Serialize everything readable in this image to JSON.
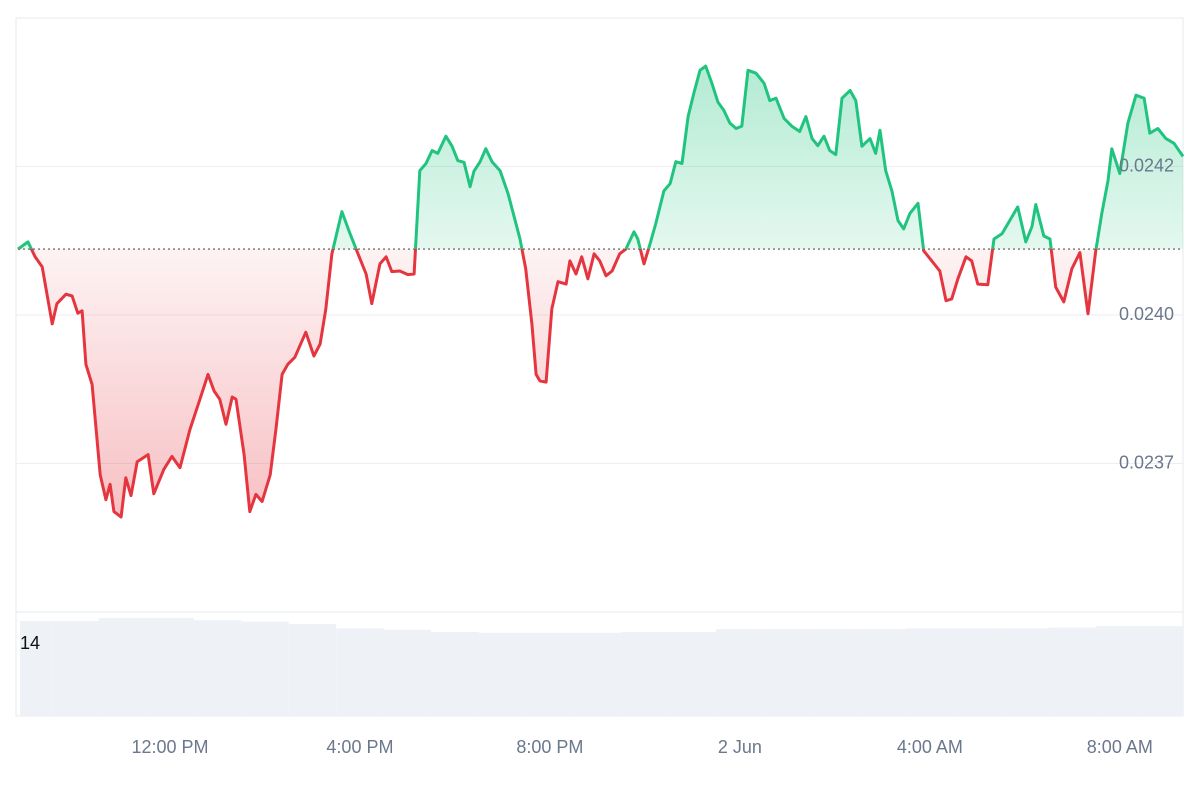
{
  "chart_data": {
    "type": "line",
    "up_color": "#20c47f",
    "down_color": "#e5353f",
    "baseline": 0.024111,
    "xlim": [
      8.8,
      33.33
    ],
    "xticks": [
      {
        "value": 12,
        "label": "12:00 PM"
      },
      {
        "value": 16,
        "label": "4:00 PM"
      },
      {
        "value": 20,
        "label": "8:00 PM"
      },
      {
        "value": 24,
        "label": "2 Jun"
      },
      {
        "value": 28,
        "label": "4:00 AM"
      },
      {
        "value": 32,
        "label": "8:00 AM"
      }
    ],
    "ylim": [
      0.0235,
      0.0245
    ],
    "yticks": [
      {
        "value": 0.02425,
        "label": "0.0242"
      },
      {
        "value": 0.024,
        "label": "0.0240"
      },
      {
        "value": 0.02375,
        "label": "0.0237"
      }
    ],
    "grid": true,
    "x": [
      8.8,
      9.01,
      9.16,
      9.31,
      9.52,
      9.62,
      9.81,
      9.94,
      10.06,
      10.15,
      10.23,
      10.36,
      10.53,
      10.65,
      10.74,
      10.82,
      10.97,
      11.07,
      11.18,
      11.31,
      11.54,
      11.66,
      11.87,
      12.04,
      12.21,
      12.42,
      12.63,
      12.8,
      12.93,
      13.05,
      13.18,
      13.31,
      13.39,
      13.56,
      13.68,
      13.81,
      13.94,
      14.11,
      14.23,
      14.36,
      14.48,
      14.63,
      14.86,
      15.03,
      15.16,
      15.28,
      15.41,
      15.62,
      15.79,
      15.96,
      16.13,
      16.25,
      16.42,
      16.55,
      16.67,
      16.84,
      17.01,
      17.14,
      17.26,
      17.39,
      17.52,
      17.64,
      17.81,
      17.94,
      18.06,
      18.19,
      18.32,
      18.4,
      18.53,
      18.65,
      18.78,
      18.95,
      19.12,
      19.37,
      19.49,
      19.62,
      19.71,
      19.79,
      19.92,
      20.04,
      20.17,
      20.34,
      20.42,
      20.55,
      20.67,
      20.8,
      20.93,
      21.05,
      21.18,
      21.31,
      21.47,
      21.6,
      21.77,
      21.85,
      21.98,
      22.11,
      22.23,
      22.4,
      22.53,
      22.65,
      22.78,
      22.91,
      23.03,
      23.16,
      23.28,
      23.41,
      23.54,
      23.66,
      23.79,
      23.92,
      24.04,
      24.17,
      24.34,
      24.51,
      24.63,
      24.76,
      24.93,
      25.09,
      25.26,
      25.39,
      25.52,
      25.64,
      25.77,
      25.89,
      26.02,
      26.15,
      26.32,
      26.44,
      26.57,
      26.74,
      26.86,
      26.95,
      27.07,
      27.2,
      27.33,
      27.45,
      27.58,
      27.75,
      27.87,
      28.04,
      28.21,
      28.34,
      28.46,
      28.59,
      28.76,
      28.88,
      29.01,
      29.22,
      29.35,
      29.52,
      29.68,
      29.85,
      30.02,
      30.15,
      30.23,
      30.4,
      30.53,
      30.65,
      30.82,
      30.99,
      31.16,
      31.33,
      31.49,
      31.62,
      31.75,
      31.83,
      32.0,
      32.17,
      32.34,
      32.51,
      32.63,
      32.8,
      32.97,
      33.14,
      33.33
    ],
    "values": [
      0.024111,
      0.024123,
      0.024098,
      0.024081,
      0.023985,
      0.024019,
      0.024035,
      0.024032,
      0.024003,
      0.024007,
      0.023917,
      0.023883,
      0.023731,
      0.023689,
      0.023715,
      0.023669,
      0.02366,
      0.023726,
      0.023696,
      0.023753,
      0.023765,
      0.023699,
      0.02374,
      0.023762,
      0.023743,
      0.023807,
      0.023858,
      0.0239,
      0.023872,
      0.023858,
      0.023816,
      0.023862,
      0.023858,
      0.023765,
      0.023669,
      0.023698,
      0.023686,
      0.023731,
      0.023807,
      0.0239,
      0.023917,
      0.023929,
      0.023971,
      0.023931,
      0.023951,
      0.02401,
      0.024103,
      0.024174,
      0.024137,
      0.024103,
      0.024069,
      0.024019,
      0.024086,
      0.024098,
      0.024073,
      0.024074,
      0.024068,
      0.024069,
      0.024243,
      0.024255,
      0.024277,
      0.024272,
      0.024301,
      0.024284,
      0.02426,
      0.024257,
      0.024216,
      0.024242,
      0.024258,
      0.02428,
      0.024258,
      0.024243,
      0.024204,
      0.024128,
      0.024078,
      0.023985,
      0.0239,
      0.023889,
      0.023887,
      0.02401,
      0.024056,
      0.024052,
      0.024091,
      0.024069,
      0.024098,
      0.024061,
      0.024103,
      0.024091,
      0.024066,
      0.024074,
      0.024103,
      0.024111,
      0.02414,
      0.024128,
      0.024086,
      0.02412,
      0.024154,
      0.024209,
      0.024221,
      0.024258,
      0.024255,
      0.024334,
      0.024373,
      0.024412,
      0.024419,
      0.02439,
      0.024358,
      0.024345,
      0.024323,
      0.024314,
      0.024318,
      0.024412,
      0.024407,
      0.02439,
      0.024361,
      0.024365,
      0.024331,
      0.024318,
      0.024309,
      0.024334,
      0.024297,
      0.024285,
      0.024301,
      0.024277,
      0.02427,
      0.024365,
      0.024378,
      0.024361,
      0.024284,
      0.024297,
      0.024272,
      0.024311,
      0.024243,
      0.024209,
      0.024159,
      0.024145,
      0.024171,
      0.024188,
      0.024108,
      0.024091,
      0.024074,
      0.024024,
      0.024027,
      0.024061,
      0.024098,
      0.024091,
      0.024052,
      0.024051,
      0.024128,
      0.024137,
      0.024159,
      0.024182,
      0.024123,
      0.024149,
      0.024186,
      0.024133,
      0.024128,
      0.024047,
      0.024022,
      0.024078,
      0.024105,
      0.024002,
      0.024106,
      0.024171,
      0.024226,
      0.02428,
      0.024238,
      0.024323,
      0.02437,
      0.024365,
      0.024306,
      0.024314,
      0.024297,
      0.024289,
      0.024267
    ],
    "volume": {
      "color": "#eef1f6",
      "ylim": [
        0,
        14
      ],
      "yticks": [
        14
      ],
      "x": [
        9,
        10,
        11,
        12,
        13,
        14,
        15,
        16,
        17,
        18,
        19,
        20,
        21,
        22,
        23,
        24,
        25,
        26,
        27,
        28,
        29,
        30,
        31,
        32,
        33
      ],
      "values": [
        12.8,
        12.8,
        13.2,
        13.2,
        12.9,
        12.7,
        12.4,
        11.8,
        11.6,
        11.3,
        11.2,
        11.2,
        11.2,
        11.3,
        11.3,
        11.7,
        11.7,
        11.7,
        11.7,
        11.8,
        11.8,
        11.8,
        11.9,
        12.1,
        12.1
      ]
    }
  }
}
